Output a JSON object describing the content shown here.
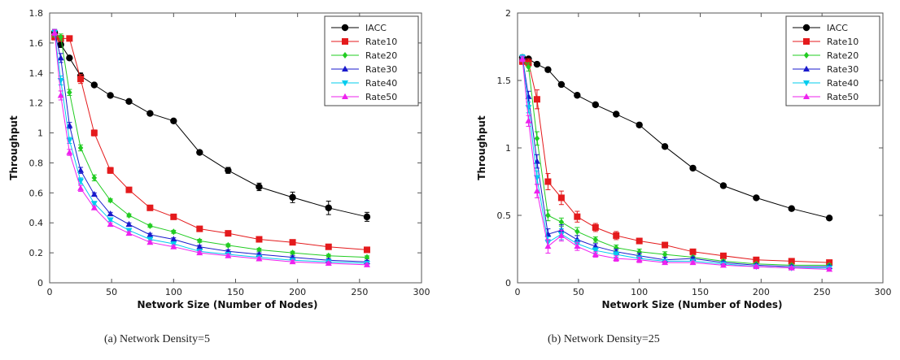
{
  "captions": [
    "(a)  Network Density=5",
    "(b)  Network Density=25"
  ],
  "series_styles": [
    {
      "name": "IACC",
      "color": "#000000",
      "marker": "circle"
    },
    {
      "name": "Rate10",
      "color": "#e41a1c",
      "marker": "square"
    },
    {
      "name": "Rate20",
      "color": "#22cc22",
      "marker": "diamond"
    },
    {
      "name": "Rate30",
      "color": "#1a1acc",
      "marker": "triangle-up"
    },
    {
      "name": "Rate40",
      "color": "#00ccee",
      "marker": "triangle-down"
    },
    {
      "name": "Rate50",
      "color": "#ee22ee",
      "marker": "triangle-up"
    }
  ],
  "chart_data": [
    {
      "type": "line",
      "xlabel": "Network Size (Number of Nodes)",
      "ylabel": "Throughput",
      "xlim": [
        0,
        300
      ],
      "ylim": [
        0,
        1.8
      ],
      "xticks": [
        0,
        50,
        100,
        150,
        200,
        250,
        300
      ],
      "yticks": [
        0,
        0.2,
        0.4,
        0.6,
        0.8,
        1,
        1.2,
        1.4,
        1.6,
        1.8
      ],
      "legend": "top-right",
      "grid": false,
      "x": [
        4,
        9,
        16,
        25,
        36,
        49,
        64,
        81,
        100,
        121,
        144,
        169,
        196,
        225,
        256
      ],
      "series": [
        {
          "name": "IACC",
          "values": [
            1.67,
            1.59,
            1.5,
            1.38,
            1.32,
            1.25,
            1.21,
            1.13,
            1.08,
            0.87,
            0.75,
            0.64,
            0.57,
            0.5,
            0.44
          ],
          "errors": [
            0.02,
            0.02,
            0.01,
            0.02,
            0.01,
            0.01,
            0.01,
            0.01,
            0.01,
            0.01,
            0.02,
            0.025,
            0.035,
            0.045,
            0.03
          ]
        },
        {
          "name": "Rate10",
          "values": [
            1.64,
            1.63,
            1.63,
            1.36,
            1.0,
            0.75,
            0.62,
            0.5,
            0.44,
            0.36,
            0.33,
            0.29,
            0.27,
            0.24,
            0.22
          ],
          "errors": [
            0.02,
            0.02,
            0.01,
            0.03,
            0.02,
            0.02,
            0.01,
            0.01,
            0.01,
            0.01,
            0.01,
            0.01,
            0.01,
            0.01,
            0.01
          ]
        },
        {
          "name": "Rate20",
          "values": [
            1.66,
            1.64,
            1.27,
            0.9,
            0.7,
            0.55,
            0.45,
            0.38,
            0.34,
            0.28,
            0.25,
            0.22,
            0.2,
            0.18,
            0.17
          ],
          "errors": [
            0.02,
            0.02,
            0.02,
            0.02,
            0.02,
            0.01,
            0.01,
            0.01,
            0.01,
            0.01,
            0.01,
            0.01,
            0.01,
            0.01,
            0.01
          ]
        },
        {
          "name": "Rate30",
          "values": [
            1.67,
            1.5,
            1.05,
            0.75,
            0.59,
            0.46,
            0.39,
            0.32,
            0.29,
            0.24,
            0.21,
            0.19,
            0.17,
            0.15,
            0.14
          ],
          "errors": [
            0.02,
            0.03,
            0.02,
            0.02,
            0.01,
            0.01,
            0.01,
            0.01,
            0.01,
            0.01,
            0.01,
            0.01,
            0.01,
            0.01,
            0.01
          ]
        },
        {
          "name": "Rate40",
          "values": [
            1.67,
            1.35,
            0.95,
            0.68,
            0.53,
            0.42,
            0.35,
            0.29,
            0.26,
            0.21,
            0.19,
            0.17,
            0.15,
            0.14,
            0.13
          ],
          "errors": [
            0.02,
            0.03,
            0.02,
            0.02,
            0.01,
            0.01,
            0.01,
            0.01,
            0.01,
            0.01,
            0.01,
            0.01,
            0.01,
            0.01,
            0.01
          ]
        },
        {
          "name": "Rate50",
          "values": [
            1.67,
            1.25,
            0.87,
            0.63,
            0.5,
            0.39,
            0.33,
            0.27,
            0.24,
            0.2,
            0.18,
            0.16,
            0.14,
            0.13,
            0.12
          ],
          "errors": [
            0.02,
            0.03,
            0.02,
            0.02,
            0.01,
            0.01,
            0.01,
            0.01,
            0.01,
            0.01,
            0.01,
            0.01,
            0.01,
            0.01,
            0.01
          ]
        }
      ]
    },
    {
      "type": "line",
      "xlabel": "Network Size (Number of Nodes)",
      "ylabel": "Throughput",
      "xlim": [
        0,
        300
      ],
      "ylim": [
        0,
        2
      ],
      "xticks": [
        0,
        50,
        100,
        150,
        200,
        250,
        300
      ],
      "yticks": [
        0,
        0.5,
        1,
        1.5,
        2
      ],
      "legend": "top-right",
      "grid": false,
      "x": [
        4,
        9,
        16,
        25,
        36,
        49,
        64,
        81,
        100,
        121,
        144,
        169,
        196,
        225,
        256
      ],
      "series": [
        {
          "name": "IACC",
          "values": [
            1.67,
            1.66,
            1.62,
            1.58,
            1.47,
            1.39,
            1.32,
            1.25,
            1.17,
            1.01,
            0.85,
            0.72,
            0.63,
            0.55,
            0.48
          ],
          "errors": [
            0.02,
            0.01,
            0.01,
            0.01,
            0.01,
            0.01,
            0.01,
            0.01,
            0.01,
            0.01,
            0.01,
            0.01,
            0.01,
            0.01,
            0.01
          ]
        },
        {
          "name": "Rate10",
          "values": [
            1.64,
            1.63,
            1.36,
            0.75,
            0.63,
            0.49,
            0.41,
            0.35,
            0.31,
            0.28,
            0.23,
            0.2,
            0.17,
            0.16,
            0.15
          ],
          "errors": [
            0.02,
            0.03,
            0.07,
            0.06,
            0.05,
            0.04,
            0.03,
            0.03,
            0.02,
            0.02,
            0.02,
            0.01,
            0.01,
            0.01,
            0.01
          ]
        },
        {
          "name": "Rate20",
          "values": [
            1.66,
            1.6,
            1.07,
            0.5,
            0.45,
            0.38,
            0.32,
            0.26,
            0.23,
            0.21,
            0.19,
            0.16,
            0.14,
            0.13,
            0.13
          ],
          "errors": [
            0.02,
            0.03,
            0.05,
            0.04,
            0.03,
            0.03,
            0.02,
            0.02,
            0.02,
            0.02,
            0.01,
            0.01,
            0.01,
            0.01,
            0.01
          ]
        },
        {
          "name": "Rate30",
          "values": [
            1.67,
            1.38,
            0.9,
            0.36,
            0.39,
            0.32,
            0.27,
            0.23,
            0.2,
            0.17,
            0.18,
            0.15,
            0.13,
            0.12,
            0.12
          ],
          "errors": [
            0.02,
            0.04,
            0.05,
            0.04,
            0.04,
            0.03,
            0.02,
            0.02,
            0.02,
            0.02,
            0.01,
            0.01,
            0.01,
            0.01,
            0.01
          ]
        },
        {
          "name": "Rate40",
          "values": [
            1.67,
            1.3,
            0.78,
            0.3,
            0.36,
            0.29,
            0.24,
            0.21,
            0.18,
            0.16,
            0.16,
            0.14,
            0.12,
            0.11,
            0.11
          ],
          "errors": [
            0.02,
            0.04,
            0.05,
            0.04,
            0.04,
            0.03,
            0.02,
            0.02,
            0.02,
            0.01,
            0.01,
            0.01,
            0.01,
            0.01,
            0.01
          ]
        },
        {
          "name": "Rate50",
          "values": [
            1.66,
            1.2,
            0.68,
            0.27,
            0.35,
            0.27,
            0.21,
            0.18,
            0.17,
            0.15,
            0.15,
            0.13,
            0.12,
            0.11,
            0.1
          ],
          "errors": [
            0.02,
            0.04,
            0.05,
            0.05,
            0.04,
            0.03,
            0.02,
            0.02,
            0.02,
            0.01,
            0.01,
            0.01,
            0.01,
            0.01,
            0.01
          ]
        }
      ]
    }
  ]
}
